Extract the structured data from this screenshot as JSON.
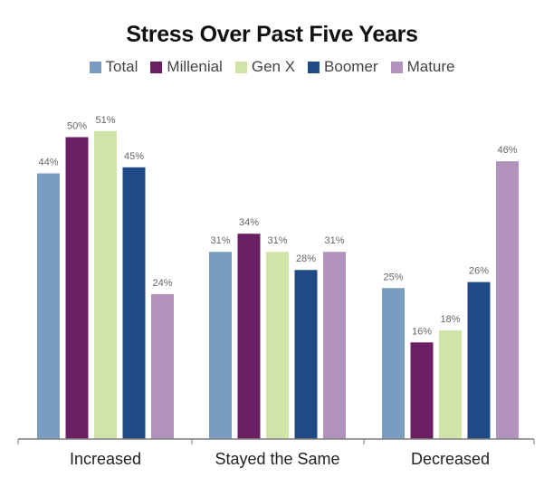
{
  "chart_data": {
    "type": "bar",
    "title": "Stress Over Past Five Years",
    "xlabel": "",
    "ylabel": "",
    "ylim": [
      0,
      60
    ],
    "grid": false,
    "legend_position": "top",
    "categories": [
      "Increased",
      "Stayed the Same",
      "Decreased"
    ],
    "series": [
      {
        "name": "Total",
        "color": "#7a9cc1",
        "values": [
          44,
          31,
          25
        ],
        "labels": [
          "44%",
          "31%",
          "25%"
        ]
      },
      {
        "name": "Millenial",
        "color": "#6b1f63",
        "values": [
          50,
          34,
          16
        ],
        "labels": [
          "50%",
          "34%",
          "16%"
        ]
      },
      {
        "name": "Gen X",
        "color": "#cfe4a6",
        "values": [
          51,
          31,
          18
        ],
        "labels": [
          "51%",
          "31%",
          "18%"
        ]
      },
      {
        "name": "Boomer",
        "color": "#1e4a86",
        "values": [
          45,
          28,
          26
        ],
        "labels": [
          "45%",
          "28%",
          "26%"
        ]
      },
      {
        "name": "Mature",
        "color": "#b092bd",
        "values": [
          24,
          31,
          46
        ],
        "labels": [
          "24%",
          "31%",
          "46%"
        ]
      }
    ]
  }
}
